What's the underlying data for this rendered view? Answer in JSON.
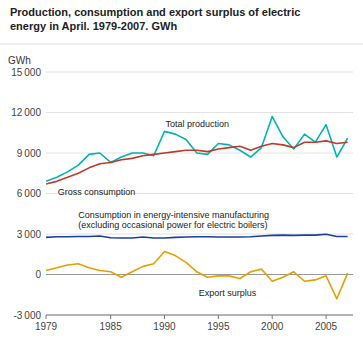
{
  "chart_data": {
    "type": "line",
    "title": "Production, consumption and export surplus of electric\nenergy in April. 1979-2007. GWh",
    "ylabel": "GWh",
    "x": [
      1979,
      1980,
      1981,
      1982,
      1983,
      1984,
      1985,
      1986,
      1987,
      1988,
      1989,
      1990,
      1991,
      1992,
      1993,
      1994,
      1995,
      1996,
      1997,
      1998,
      1999,
      2000,
      2001,
      2002,
      2003,
      2004,
      2005,
      2006,
      2007
    ],
    "series": [
      {
        "name": "Total production",
        "color": "#00B5B5",
        "values": [
          6900,
          7200,
          7600,
          8100,
          8900,
          9000,
          8300,
          8700,
          9000,
          9000,
          8800,
          10600,
          10400,
          10000,
          9000,
          8900,
          9700,
          9600,
          9200,
          8700,
          9400,
          11700,
          10200,
          9300,
          10400,
          9800,
          11100,
          8700,
          10100
        ]
      },
      {
        "name": "Gross consumption",
        "color": "#C0392B",
        "values": [
          6700,
          6900,
          7200,
          7500,
          7900,
          8200,
          8300,
          8500,
          8600,
          8800,
          8900,
          9000,
          9100,
          9200,
          9200,
          9100,
          9300,
          9400,
          9500,
          9200,
          9500,
          9700,
          9600,
          9400,
          9800,
          9800,
          9900,
          9700,
          9800
        ]
      },
      {
        "name": "Consumption in energy-intensive manufacturing\n(excluding occasional power for electric boilers)",
        "color": "#1A3FA0",
        "values": [
          2750,
          2800,
          2800,
          2820,
          2820,
          2850,
          2720,
          2700,
          2700,
          2780,
          2700,
          2700,
          2750,
          2780,
          2800,
          2800,
          2780,
          2780,
          2780,
          2800,
          2850,
          2900,
          2920,
          2900,
          2920,
          2920,
          2980,
          2820,
          2820
        ]
      },
      {
        "name": "Export surplus",
        "color": "#E8A000",
        "values": [
          300,
          500,
          700,
          800,
          500,
          300,
          200,
          -200,
          200,
          600,
          800,
          1700,
          1400,
          900,
          200,
          -200,
          -100,
          -100,
          -300,
          200,
          400,
          -500,
          -200,
          200,
          -500,
          -400,
          -100,
          -1800,
          100
        ]
      }
    ],
    "xlim": [
      1979,
      2007.5
    ],
    "xticks": [
      1979,
      1985,
      1990,
      1995,
      2000,
      2005
    ],
    "ylim": [
      -3000,
      15000
    ],
    "yticks": [
      {
        "value": -3000,
        "label": "-3 000"
      },
      0,
      {
        "value": 3000,
        "label": "3 000"
      },
      {
        "value": 6000,
        "label": "6 000"
      },
      {
        "value": 9000,
        "label": "9 000"
      },
      {
        "value": 12000,
        "label": "12 000"
      },
      {
        "value": 15000,
        "label": "15 000"
      }
    ],
    "grid": true
  }
}
